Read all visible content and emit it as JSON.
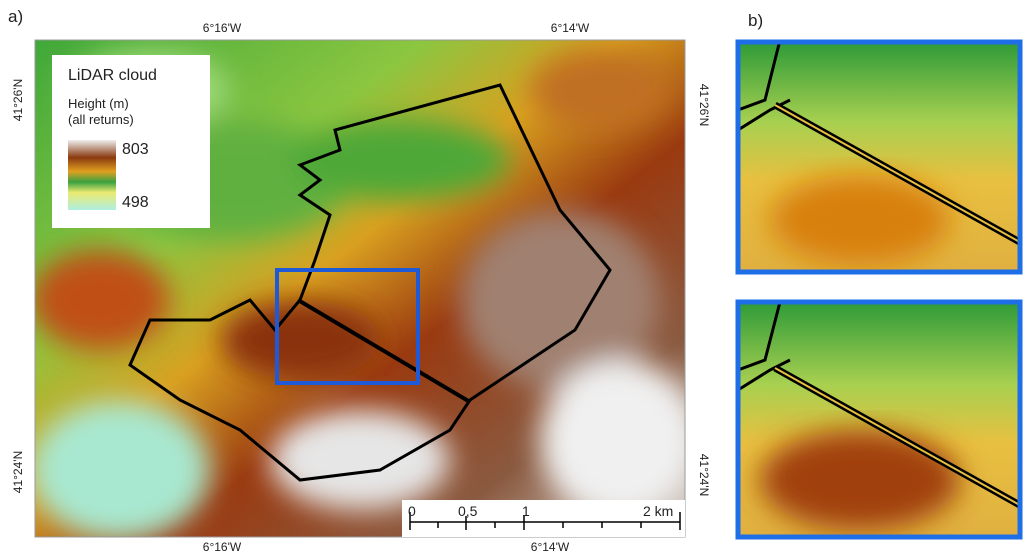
{
  "panel_a": {
    "label": "a)",
    "top_labels": [
      "6°16'W",
      "6°14'W"
    ],
    "bottom_labels": [
      "6°16'W",
      "6°14'W"
    ],
    "left_labels": [
      "41°26'N",
      "41°24'N"
    ],
    "right_labels": [
      "41°26'N",
      "41°24'N"
    ],
    "legend": {
      "title": "LiDAR cloud",
      "subtitle": "Height (m)",
      "subtitle2": "(all returns)",
      "max": "803",
      "min": "498"
    },
    "scale_bar": [
      "0",
      "0,5",
      "1",
      "2 km"
    ]
  },
  "panel_b": {
    "label": "b)"
  }
}
